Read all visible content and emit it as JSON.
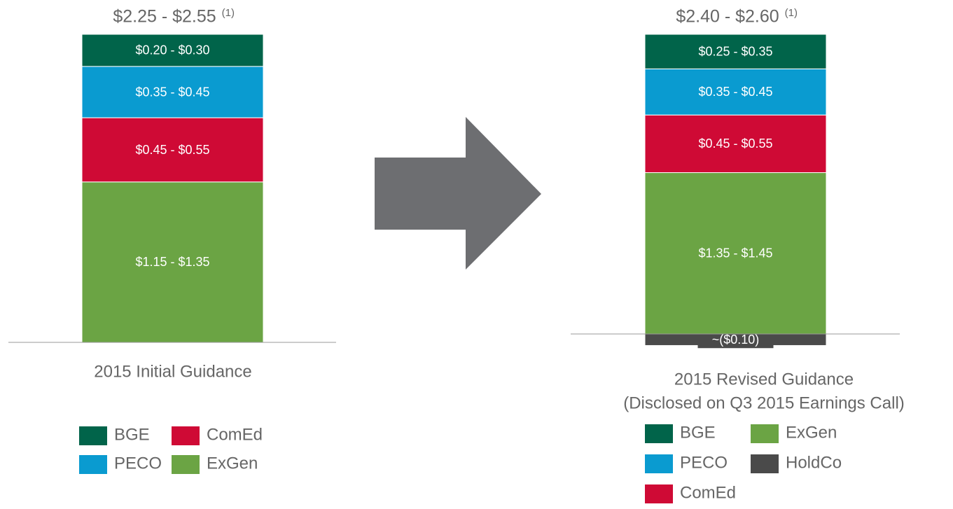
{
  "chart_data": [
    {
      "type": "bar",
      "stacked": true,
      "title": "$2.25 - $2.55",
      "title_note": "(1)",
      "xlabel": [
        "2015 Initial Guidance"
      ],
      "series": [
        {
          "name": "BGE",
          "color": "#01644a",
          "range": [
            0.2,
            0.3
          ],
          "value_label": "$0.20 - $0.30"
        },
        {
          "name": "PECO",
          "color": "#0a9bd0",
          "range": [
            0.35,
            0.45
          ],
          "value_label": "$0.35 - $0.45"
        },
        {
          "name": "ComEd",
          "color": "#cf0a35",
          "range": [
            0.45,
            0.55
          ],
          "value_label": "$0.45 - $0.55"
        },
        {
          "name": "ExGen",
          "color": "#6ba444",
          "range": [
            1.15,
            1.35
          ],
          "value_label": "$1.15 - $1.35"
        }
      ]
    },
    {
      "type": "bar",
      "stacked": true,
      "title": "$2.40 - $2.60",
      "title_note": "(1)",
      "xlabel": [
        "2015 Revised Guidance",
        "(Disclosed on Q3 2015 Earnings Call)"
      ],
      "series": [
        {
          "name": "BGE",
          "color": "#01644a",
          "range": [
            0.25,
            0.35
          ],
          "value_label": "$0.25 - $0.35"
        },
        {
          "name": "PECO",
          "color": "#0a9bd0",
          "range": [
            0.35,
            0.45
          ],
          "value_label": "$0.35 - $0.45"
        },
        {
          "name": "ComEd",
          "color": "#cf0a35",
          "range": [
            0.45,
            0.55
          ],
          "value_label": "$0.45 - $0.55"
        },
        {
          "name": "ExGen",
          "color": "#6ba444",
          "range": [
            1.35,
            1.45
          ],
          "value_label": "$1.35 - $1.45"
        },
        {
          "name": "HoldCo",
          "color": "#4a4a4a",
          "value": -0.1,
          "value_label": "~($0.10)"
        }
      ]
    }
  ]
}
